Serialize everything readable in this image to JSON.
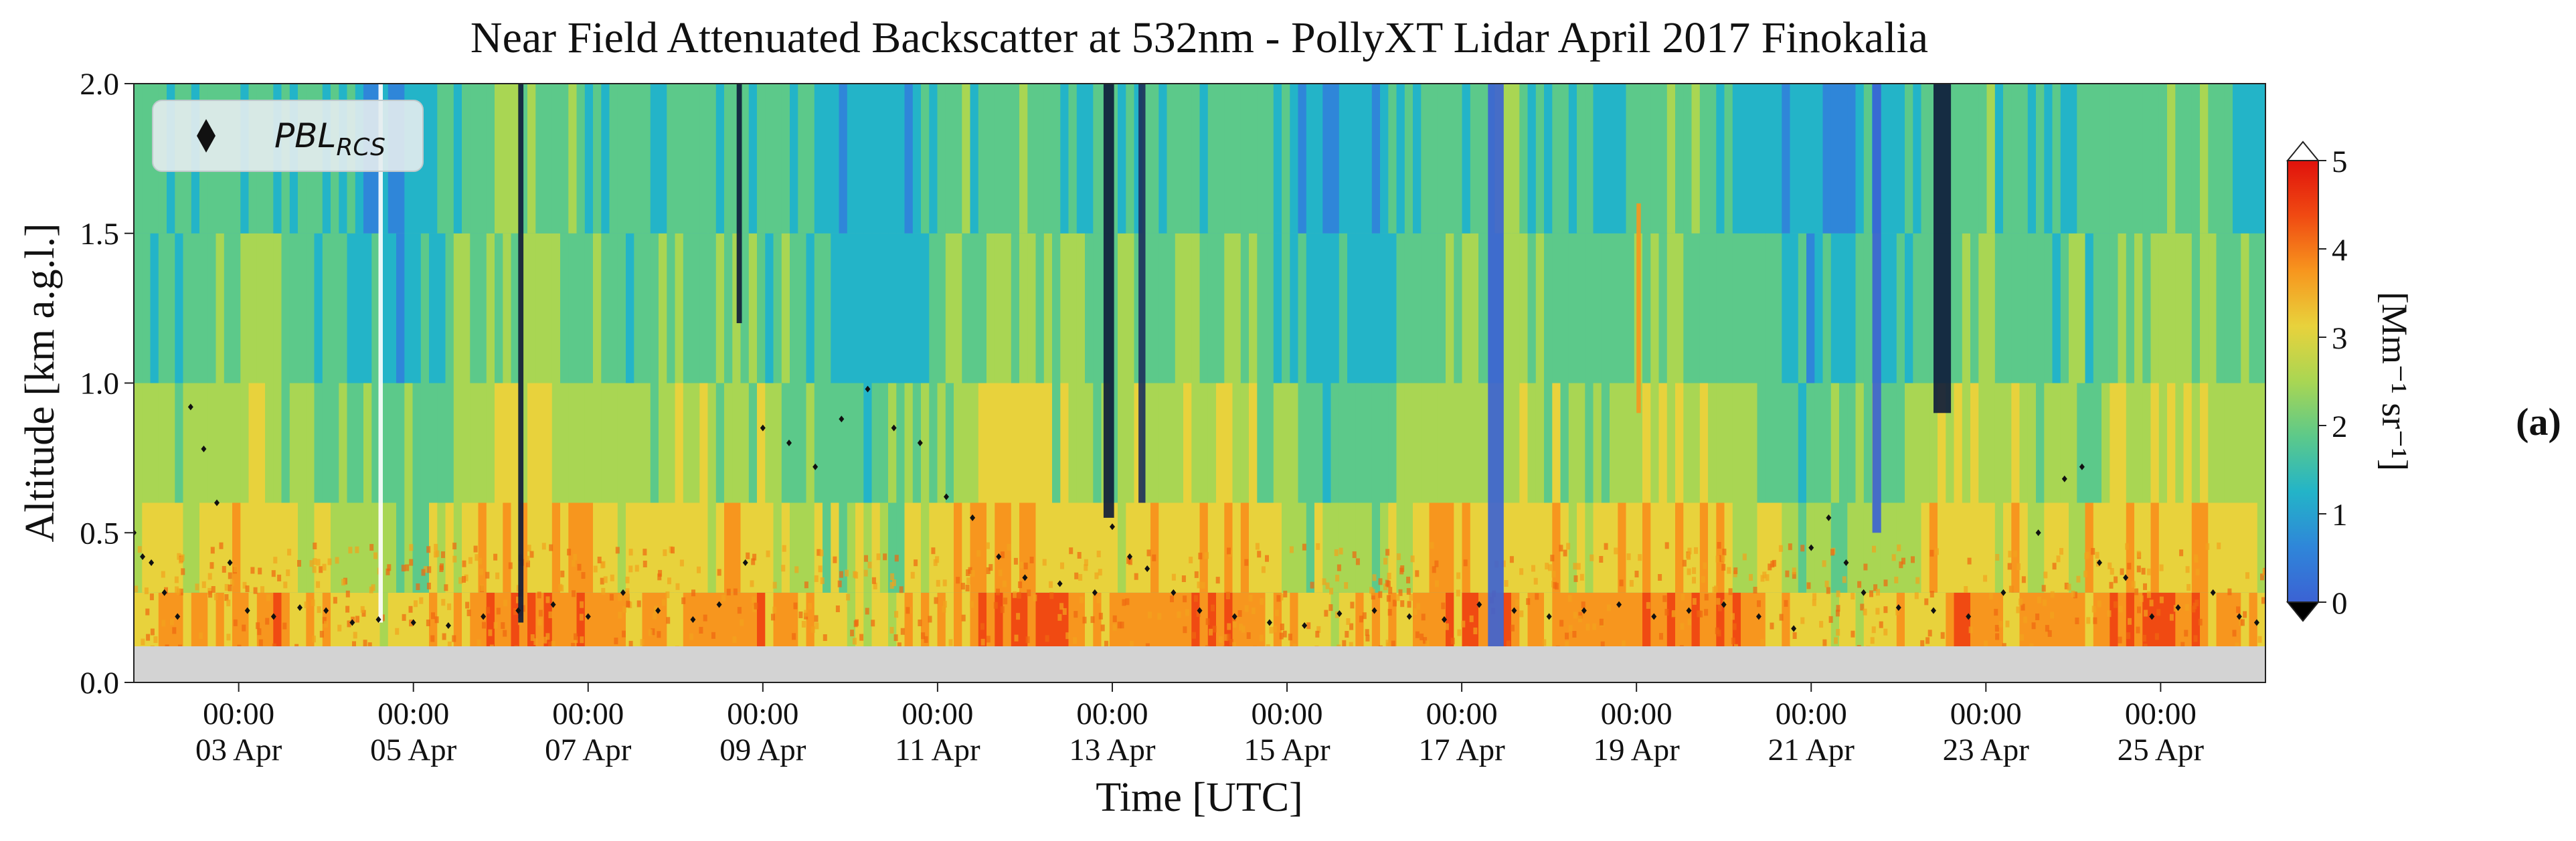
{
  "chart_data": {
    "type": "heatmap",
    "title": "Near Field Attenuated Backscatter at 532nm - PollyXT Lidar April 2017 Finokalia",
    "xlabel": "Time [UTC]",
    "ylabel": "Altitude [km a.g.l.]",
    "ylim": [
      0.0,
      2.0
    ],
    "xlim_days": [
      1.8,
      26.2
    ],
    "no_data_below_km": 0.12,
    "yticks": [
      0.0,
      0.5,
      1.0,
      1.5,
      2.0
    ],
    "ytick_labels": [
      "0.0",
      "0.5",
      "1.0",
      "1.5",
      "2.0"
    ],
    "xticks": [
      {
        "day": 3,
        "time": "00:00",
        "date": "03 Apr"
      },
      {
        "day": 5,
        "time": "00:00",
        "date": "05 Apr"
      },
      {
        "day": 7,
        "time": "00:00",
        "date": "07 Apr"
      },
      {
        "day": 9,
        "time": "00:00",
        "date": "09 Apr"
      },
      {
        "day": 11,
        "time": "00:00",
        "date": "11 Apr"
      },
      {
        "day": 13,
        "time": "00:00",
        "date": "13 Apr"
      },
      {
        "day": 15,
        "time": "00:00",
        "date": "15 Apr"
      },
      {
        "day": 17,
        "time": "00:00",
        "date": "17 Apr"
      },
      {
        "day": 19,
        "time": "00:00",
        "date": "19 Apr"
      },
      {
        "day": 21,
        "time": "00:00",
        "date": "21 Apr"
      },
      {
        "day": 23,
        "time": "00:00",
        "date": "23 Apr"
      },
      {
        "day": 25,
        "time": "00:00",
        "date": "25 Apr"
      }
    ],
    "colorbar": {
      "label": "[Mm⁻¹ sr⁻¹]",
      "min": 0,
      "max": 5,
      "ticks": [
        0,
        1,
        2,
        3,
        4,
        5
      ],
      "tick_labels": [
        "0",
        "1",
        "2",
        "3",
        "4",
        "5"
      ],
      "extend": "both",
      "colors": [
        "#3b62d4",
        "#2f86d9",
        "#23b4c8",
        "#5cc98a",
        "#a9d653",
        "#e8d23c",
        "#f7961e",
        "#f04a12",
        "#e0120c"
      ]
    },
    "legend": {
      "label": "PBL",
      "subscript": "RCS",
      "position": "top-left"
    },
    "panel_label": "(a)",
    "pbl_rcs_km": [
      {
        "day": 1.8,
        "alt": 0.5
      },
      {
        "day": 1.9,
        "alt": 0.42
      },
      {
        "day": 2.0,
        "alt": 0.4
      },
      {
        "day": 2.15,
        "alt": 0.3
      },
      {
        "day": 2.3,
        "alt": 0.22
      },
      {
        "day": 2.45,
        "alt": 0.92
      },
      {
        "day": 2.6,
        "alt": 0.78
      },
      {
        "day": 2.75,
        "alt": 0.6
      },
      {
        "day": 2.9,
        "alt": 0.4
      },
      {
        "day": 3.1,
        "alt": 0.24
      },
      {
        "day": 3.4,
        "alt": 0.22
      },
      {
        "day": 3.7,
        "alt": 0.25
      },
      {
        "day": 4.0,
        "alt": 0.24
      },
      {
        "day": 4.3,
        "alt": 0.2
      },
      {
        "day": 4.6,
        "alt": 0.21
      },
      {
        "day": 5.0,
        "alt": 0.2
      },
      {
        "day": 5.4,
        "alt": 0.19
      },
      {
        "day": 5.8,
        "alt": 0.22
      },
      {
        "day": 6.2,
        "alt": 0.24
      },
      {
        "day": 6.6,
        "alt": 0.26
      },
      {
        "day": 7.0,
        "alt": 0.22
      },
      {
        "day": 7.4,
        "alt": 0.3
      },
      {
        "day": 7.8,
        "alt": 0.24
      },
      {
        "day": 8.2,
        "alt": 0.21
      },
      {
        "day": 8.5,
        "alt": 0.26
      },
      {
        "day": 8.8,
        "alt": 0.4
      },
      {
        "day": 9.0,
        "alt": 0.85
      },
      {
        "day": 9.3,
        "alt": 0.8
      },
      {
        "day": 9.6,
        "alt": 0.72
      },
      {
        "day": 9.9,
        "alt": 0.88
      },
      {
        "day": 10.2,
        "alt": 0.98
      },
      {
        "day": 10.5,
        "alt": 0.85
      },
      {
        "day": 10.8,
        "alt": 0.8
      },
      {
        "day": 11.1,
        "alt": 0.62
      },
      {
        "day": 11.4,
        "alt": 0.55
      },
      {
        "day": 11.7,
        "alt": 0.42
      },
      {
        "day": 12.0,
        "alt": 0.35
      },
      {
        "day": 12.4,
        "alt": 0.33
      },
      {
        "day": 12.8,
        "alt": 0.3
      },
      {
        "day": 13.0,
        "alt": 0.52
      },
      {
        "day": 13.2,
        "alt": 0.42
      },
      {
        "day": 13.4,
        "alt": 0.38
      },
      {
        "day": 13.7,
        "alt": 0.3
      },
      {
        "day": 14.0,
        "alt": 0.24
      },
      {
        "day": 14.4,
        "alt": 0.22
      },
      {
        "day": 14.8,
        "alt": 0.2
      },
      {
        "day": 15.2,
        "alt": 0.19
      },
      {
        "day": 15.6,
        "alt": 0.23
      },
      {
        "day": 16.0,
        "alt": 0.24
      },
      {
        "day": 16.4,
        "alt": 0.22
      },
      {
        "day": 16.8,
        "alt": 0.21
      },
      {
        "day": 17.2,
        "alt": 0.26
      },
      {
        "day": 17.6,
        "alt": 0.24
      },
      {
        "day": 18.0,
        "alt": 0.22
      },
      {
        "day": 18.4,
        "alt": 0.24
      },
      {
        "day": 18.8,
        "alt": 0.26
      },
      {
        "day": 19.2,
        "alt": 0.22
      },
      {
        "day": 19.6,
        "alt": 0.24
      },
      {
        "day": 20.0,
        "alt": 0.26
      },
      {
        "day": 20.4,
        "alt": 0.22
      },
      {
        "day": 20.8,
        "alt": 0.18
      },
      {
        "day": 21.0,
        "alt": 0.45
      },
      {
        "day": 21.2,
        "alt": 0.55
      },
      {
        "day": 21.4,
        "alt": 0.4
      },
      {
        "day": 21.6,
        "alt": 0.3
      },
      {
        "day": 22.0,
        "alt": 0.25
      },
      {
        "day": 22.4,
        "alt": 0.24
      },
      {
        "day": 22.8,
        "alt": 0.22
      },
      {
        "day": 23.2,
        "alt": 0.3
      },
      {
        "day": 23.6,
        "alt": 0.5
      },
      {
        "day": 23.9,
        "alt": 0.68
      },
      {
        "day": 24.1,
        "alt": 0.72
      },
      {
        "day": 24.3,
        "alt": 0.4
      },
      {
        "day": 24.6,
        "alt": 0.35
      },
      {
        "day": 24.9,
        "alt": 0.22
      },
      {
        "day": 25.2,
        "alt": 0.25
      },
      {
        "day": 25.6,
        "alt": 0.3
      },
      {
        "day": 25.9,
        "alt": 0.22
      },
      {
        "day": 26.1,
        "alt": 0.2
      }
    ]
  }
}
